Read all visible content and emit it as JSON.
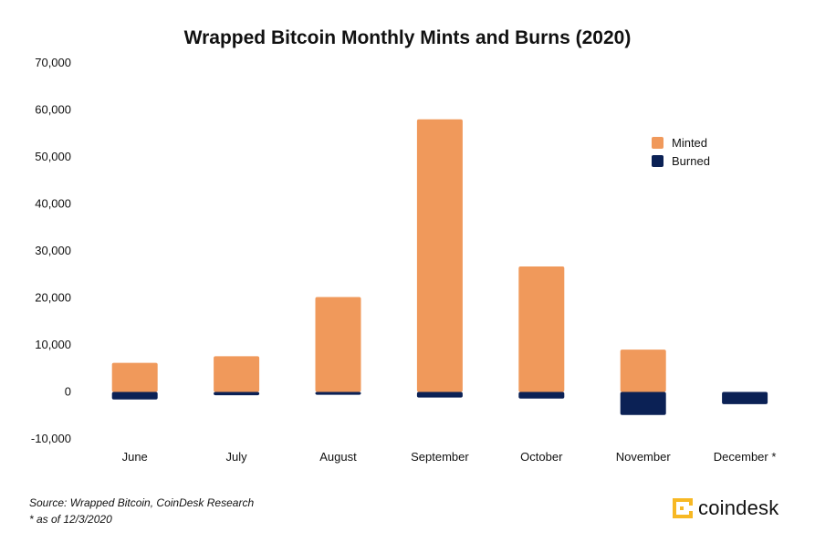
{
  "chart_data": {
    "type": "bar",
    "title": "Wrapped Bitcoin Monthly Mints and Burns (2020)",
    "categories": [
      "June",
      "July",
      "August",
      "September",
      "October",
      "November",
      "December *"
    ],
    "series": [
      {
        "name": "Minted",
        "color": "#F0995B",
        "values": [
          6200,
          7600,
          20200,
          58000,
          26700,
          9000,
          0
        ]
      },
      {
        "name": "Burned",
        "color": "#0B2155",
        "values": [
          -1600,
          -700,
          -600,
          -1200,
          -1400,
          -4900,
          -2600
        ]
      }
    ],
    "ylim": [
      -10000,
      70000
    ],
    "yticks": [
      -10000,
      0,
      10000,
      20000,
      30000,
      40000,
      50000,
      60000,
      70000
    ],
    "ytick_labels": [
      "-10,000",
      "0",
      "10,000",
      "20,000",
      "30,000",
      "40,000",
      "50,000",
      "60,000",
      "70,000"
    ],
    "xlabel": "",
    "ylabel": "",
    "grid": false,
    "legend_position": "top-right"
  },
  "footnotes": {
    "source": "Source: Wrapped Bitcoin, CoinDesk Research",
    "note": "* as of 12/3/2020"
  },
  "brand": {
    "name": "coindesk",
    "icon": "coindesk-logo-icon",
    "color": "#F7B824"
  }
}
